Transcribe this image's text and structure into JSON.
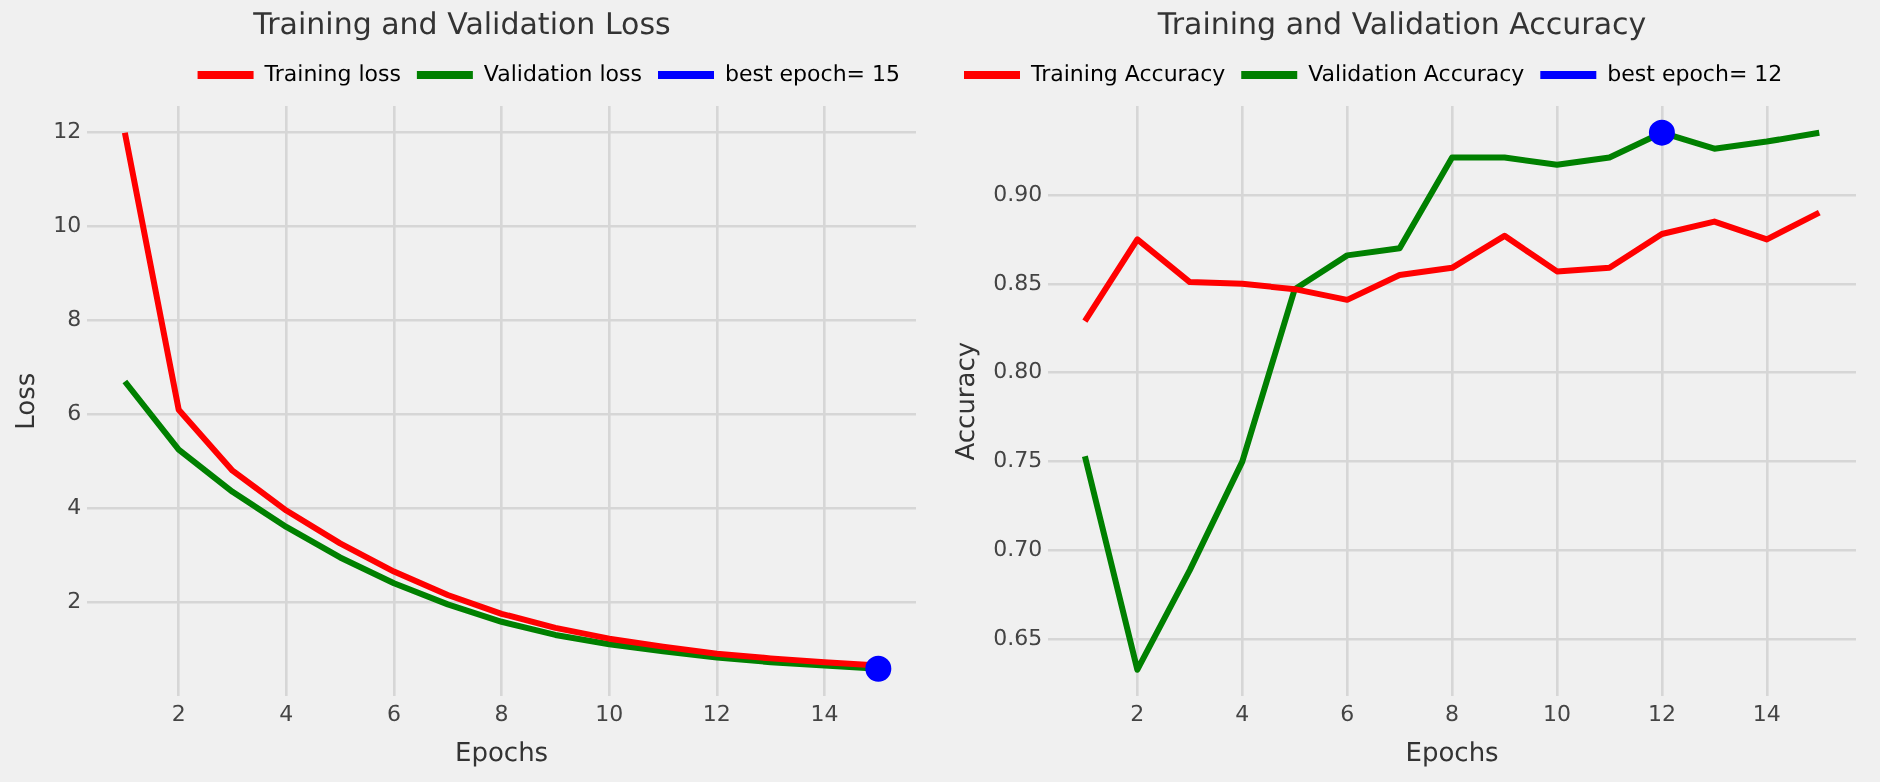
{
  "chart_data": [
    {
      "type": "line",
      "title": "Training and Validation Loss",
      "xlabel": "Epochs",
      "ylabel": "Loss",
      "x": [
        1,
        2,
        3,
        4,
        5,
        6,
        7,
        8,
        9,
        10,
        11,
        12,
        13,
        14,
        15
      ],
      "series": [
        {
          "name": "Training loss",
          "color": "#ff0000",
          "values": [
            12,
            6.1,
            4.8,
            3.95,
            3.25,
            2.65,
            2.15,
            1.75,
            1.45,
            1.22,
            1.05,
            0.9,
            0.8,
            0.72,
            0.65
          ]
        },
        {
          "name": "Validation loss",
          "color": "#008000",
          "values": [
            6.7,
            5.25,
            4.35,
            3.6,
            2.95,
            2.4,
            1.95,
            1.58,
            1.3,
            1.1,
            0.95,
            0.82,
            0.72,
            0.65,
            0.58
          ]
        },
        {
          "name": "best epoch= 15",
          "type": "scatter",
          "color": "#0000ff",
          "x": [
            15
          ],
          "values": [
            0.58
          ]
        }
      ],
      "xlim": [
        0.3,
        15.7
      ],
      "xticks": [
        2,
        4,
        6,
        8,
        10,
        12,
        14
      ],
      "ylim": [
        -0.01,
        12.57
      ],
      "yticks": [
        2,
        4,
        6,
        8,
        10,
        12
      ],
      "grid": true,
      "legend": "top right"
    },
    {
      "type": "line",
      "title": "Training and Validation Accuracy",
      "xlabel": "Epochs",
      "ylabel": "Accuracy",
      "x": [
        1,
        2,
        3,
        4,
        5,
        6,
        7,
        8,
        9,
        10,
        11,
        12,
        13,
        14,
        15
      ],
      "series": [
        {
          "name": "Training Accuracy",
          "color": "#ff0000",
          "values": [
            0.829,
            0.875,
            0.851,
            0.85,
            0.847,
            0.841,
            0.855,
            0.859,
            0.877,
            0.857,
            0.859,
            0.878,
            0.885,
            0.875,
            0.89
          ]
        },
        {
          "name": "Validation Accuracy",
          "color": "#008000",
          "values": [
            0.753,
            0.633,
            0.689,
            0.75,
            0.847,
            0.866,
            0.87,
            0.921,
            0.921,
            0.917,
            0.921,
            0.935,
            0.926,
            0.93,
            0.935
          ]
        },
        {
          "name": "best epoch= 12",
          "type": "scatter",
          "color": "#0000ff",
          "x": [
            12
          ],
          "values": [
            0.935
          ]
        }
      ],
      "xlim": [
        0.3,
        15.7
      ],
      "xticks": [
        2,
        4,
        6,
        8,
        10,
        12,
        14
      ],
      "ylim": [
        0.618,
        0.95
      ],
      "yticks": [
        {
          "value": 0.65,
          "label": "0.65"
        },
        {
          "value": 0.7,
          "label": "0.70"
        },
        {
          "value": 0.75,
          "label": "0.75"
        },
        {
          "value": 0.8,
          "label": "0.80"
        },
        {
          "value": 0.85,
          "label": "0.85"
        },
        {
          "value": 0.9,
          "label": "0.90"
        }
      ],
      "grid": true,
      "legend": "top left"
    }
  ]
}
